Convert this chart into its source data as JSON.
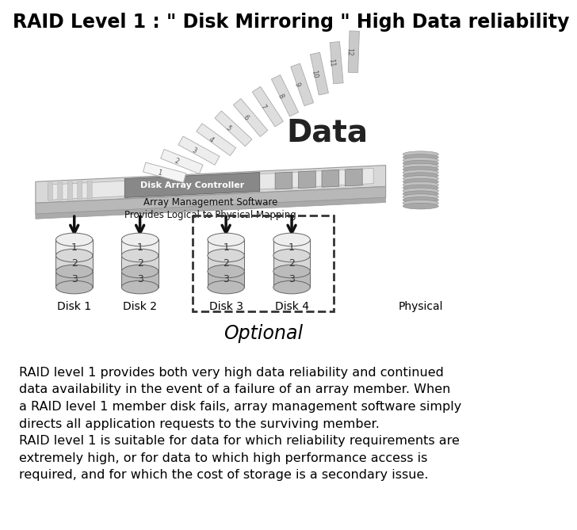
{
  "title": "RAID Level 1 : \" Disk Mirroring \" High Data reliability",
  "bg_color": "#ffffff",
  "text_color": "#000000",
  "para1": "RAID level 1 provides both very high data reliability and continued\ndata availability in the event of a failure of an array member. When\na RAID level 1 member disk fails, array management software simply\ndirects all application requests to the surviving member.",
  "para2": "RAID level 1 is suitable for data for which reliability requirements are\nextremely high, or for data to which high performance access is\nrequired, and for which the cost of storage is a secondary issue.",
  "disk_labels": [
    "Disk 1",
    "Disk 2",
    "Disk 3",
    "Disk 4"
  ],
  "physical_label": "Physical",
  "optional_label": "Optional",
  "data_label": "Data",
  "controller_label": "Disk Array Controller",
  "array_mgmt_label": "Array Management Software\nProvides Logical to Physical Mapping",
  "page_nums": [
    "1",
    "2",
    "3",
    "4",
    "5",
    "6",
    "7",
    "8",
    "9",
    "10",
    "11",
    "12"
  ]
}
